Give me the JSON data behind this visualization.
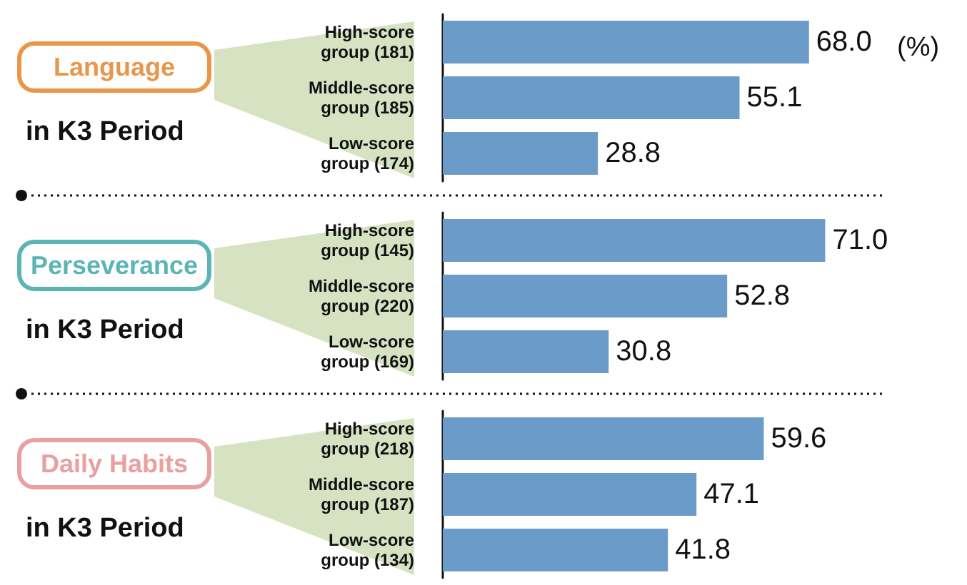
{
  "chart_data": [
    {
      "type": "bar",
      "orientation": "horizontal",
      "title": "Language",
      "subtitle": "in K3 Period",
      "annotations": [
        "(%)"
      ],
      "categories": [
        "High-score group (181)",
        "Middle-score group (185)",
        "Low-score group (174)"
      ],
      "values": [
        68.0,
        55.1,
        28.8
      ],
      "value_labels": [
        "68.0",
        "55.1",
        "28.8"
      ],
      "color": "#6b9bc9",
      "tick_labels": "y"
    },
    {
      "type": "bar",
      "orientation": "horizontal",
      "title": "Perseverance",
      "subtitle": "in K3 Period",
      "categories": [
        "High-score group (145)",
        "Middle-score group (220)",
        "Low-score group (169)"
      ],
      "values": [
        71.0,
        52.8,
        30.8
      ],
      "value_labels": [
        "71.0",
        "52.8",
        "30.8"
      ],
      "color": "#6b9bc9",
      "tick_labels": "y"
    },
    {
      "type": "bar",
      "orientation": "horizontal",
      "title": "Daily Habits",
      "subtitle": "in K3 Period",
      "categories": [
        "High-score group (218)",
        "Middle-score group (187)",
        "Low-score group (134)"
      ],
      "values": [
        59.6,
        47.1,
        41.8
      ],
      "value_labels": [
        "59.6",
        "47.1",
        "41.8"
      ],
      "color": "#6b9bc9",
      "tick_labels": "y"
    }
  ]
}
